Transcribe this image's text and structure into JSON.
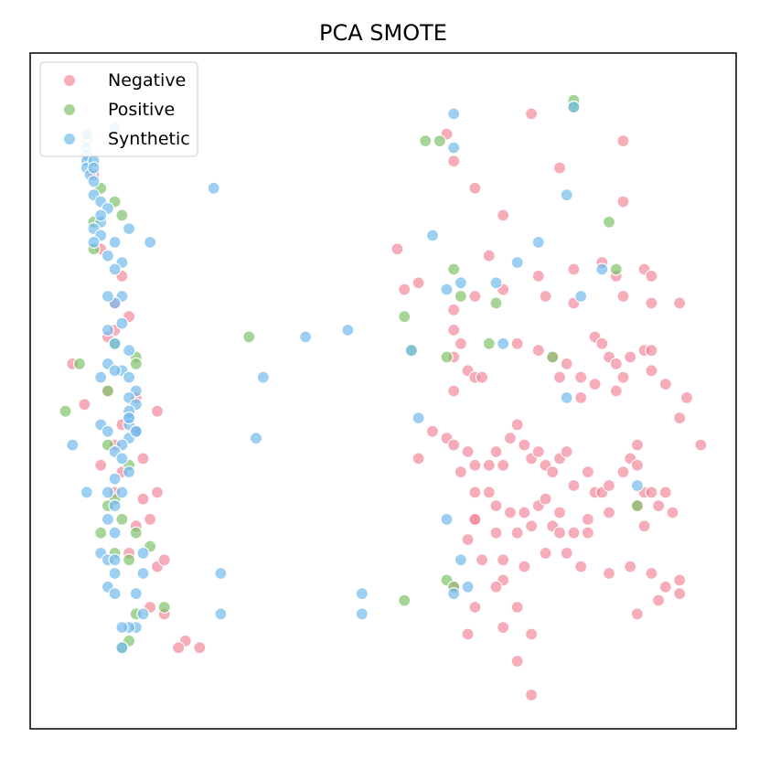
{
  "chart_data": {
    "type": "scatter",
    "title": "PCA SMOTE",
    "xlabel": "",
    "ylabel": "",
    "xlim": [
      0,
      1
    ],
    "ylim": [
      0,
      1
    ],
    "grid": false,
    "axis_ticks": false,
    "legend_position": "top-left",
    "series": [
      {
        "name": "Negative",
        "color": "#f4899c",
        "points": [
          [
            0.06,
            0.54
          ],
          [
            0.077,
            0.48
          ],
          [
            0.09,
            0.82
          ],
          [
            0.1,
            0.71
          ],
          [
            0.12,
            0.63
          ],
          [
            0.11,
            0.58
          ],
          [
            0.13,
            0.45
          ],
          [
            0.1,
            0.39
          ],
          [
            0.12,
            0.35
          ],
          [
            0.16,
            0.34
          ],
          [
            0.18,
            0.24
          ],
          [
            0.17,
            0.18
          ],
          [
            0.14,
            0.26
          ],
          [
            0.15,
            0.3
          ],
          [
            0.17,
            0.31
          ],
          [
            0.18,
            0.35
          ],
          [
            0.15,
            0.44
          ],
          [
            0.13,
            0.38
          ],
          [
            0.12,
            0.42
          ],
          [
            0.15,
            0.49
          ],
          [
            0.18,
            0.47
          ],
          [
            0.14,
            0.61
          ],
          [
            0.16,
            0.4
          ],
          [
            0.19,
            0.25
          ],
          [
            0.22,
            0.13
          ],
          [
            0.24,
            0.12
          ],
          [
            0.21,
            0.12
          ],
          [
            0.19,
            0.17
          ],
          [
            0.13,
            0.67
          ],
          [
            0.12,
            0.59
          ],
          [
            0.11,
            0.5
          ],
          [
            0.59,
            0.88
          ],
          [
            0.6,
            0.84
          ],
          [
            0.63,
            0.8
          ],
          [
            0.71,
            0.91
          ],
          [
            0.75,
            0.83
          ],
          [
            0.84,
            0.87
          ],
          [
            0.84,
            0.78
          ],
          [
            0.67,
            0.76
          ],
          [
            0.52,
            0.71
          ],
          [
            0.53,
            0.65
          ],
          [
            0.55,
            0.66
          ],
          [
            0.6,
            0.62
          ],
          [
            0.65,
            0.7
          ],
          [
            0.63,
            0.64
          ],
          [
            0.67,
            0.65
          ],
          [
            0.73,
            0.64
          ],
          [
            0.72,
            0.67
          ],
          [
            0.77,
            0.63
          ],
          [
            0.81,
            0.69
          ],
          [
            0.83,
            0.67
          ],
          [
            0.87,
            0.68
          ],
          [
            0.88,
            0.67
          ],
          [
            0.88,
            0.63
          ],
          [
            0.92,
            0.63
          ],
          [
            0.84,
            0.64
          ],
          [
            0.77,
            0.68
          ],
          [
            0.6,
            0.59
          ],
          [
            0.61,
            0.57
          ],
          [
            0.6,
            0.55
          ],
          [
            0.62,
            0.53
          ],
          [
            0.6,
            0.5
          ],
          [
            0.63,
            0.52
          ],
          [
            0.64,
            0.52
          ],
          [
            0.69,
            0.57
          ],
          [
            0.72,
            0.56
          ],
          [
            0.74,
            0.55
          ],
          [
            0.76,
            0.54
          ],
          [
            0.75,
            0.52
          ],
          [
            0.78,
            0.52
          ],
          [
            0.8,
            0.58
          ],
          [
            0.81,
            0.57
          ],
          [
            0.82,
            0.55
          ],
          [
            0.83,
            0.54
          ],
          [
            0.84,
            0.52
          ],
          [
            0.85,
            0.55
          ],
          [
            0.87,
            0.56
          ],
          [
            0.88,
            0.53
          ],
          [
            0.9,
            0.51
          ],
          [
            0.93,
            0.49
          ],
          [
            0.92,
            0.46
          ],
          [
            0.88,
            0.56
          ],
          [
            0.83,
            0.5
          ],
          [
            0.8,
            0.51
          ],
          [
            0.78,
            0.49
          ],
          [
            0.57,
            0.44
          ],
          [
            0.59,
            0.43
          ],
          [
            0.6,
            0.42
          ],
          [
            0.62,
            0.41
          ],
          [
            0.61,
            0.38
          ],
          [
            0.63,
            0.39
          ],
          [
            0.65,
            0.39
          ],
          [
            0.66,
            0.41
          ],
          [
            0.67,
            0.39
          ],
          [
            0.68,
            0.43
          ],
          [
            0.69,
            0.45
          ],
          [
            0.7,
            0.42
          ],
          [
            0.71,
            0.4
          ],
          [
            0.72,
            0.41
          ],
          [
            0.73,
            0.39
          ],
          [
            0.74,
            0.38
          ],
          [
            0.75,
            0.4
          ],
          [
            0.76,
            0.41
          ],
          [
            0.77,
            0.36
          ],
          [
            0.79,
            0.38
          ],
          [
            0.8,
            0.35
          ],
          [
            0.81,
            0.35
          ],
          [
            0.82,
            0.36
          ],
          [
            0.84,
            0.38
          ],
          [
            0.85,
            0.4
          ],
          [
            0.86,
            0.42
          ],
          [
            0.86,
            0.39
          ],
          [
            0.87,
            0.35
          ],
          [
            0.88,
            0.35
          ],
          [
            0.9,
            0.35
          ],
          [
            0.91,
            0.32
          ],
          [
            0.95,
            0.42
          ],
          [
            0.55,
            0.4
          ],
          [
            0.63,
            0.35
          ],
          [
            0.65,
            0.35
          ],
          [
            0.66,
            0.33
          ],
          [
            0.68,
            0.32
          ],
          [
            0.7,
            0.32
          ],
          [
            0.72,
            0.33
          ],
          [
            0.74,
            0.3
          ],
          [
            0.75,
            0.29
          ],
          [
            0.77,
            0.29
          ],
          [
            0.79,
            0.29
          ],
          [
            0.69,
            0.29
          ],
          [
            0.66,
            0.29
          ],
          [
            0.63,
            0.31
          ],
          [
            0.62,
            0.28
          ],
          [
            0.64,
            0.25
          ],
          [
            0.67,
            0.22
          ],
          [
            0.69,
            0.18
          ],
          [
            0.71,
            0.14
          ],
          [
            0.69,
            0.1
          ],
          [
            0.71,
            0.05
          ],
          [
            0.63,
            0.18
          ],
          [
            0.66,
            0.21
          ],
          [
            0.67,
            0.25
          ],
          [
            0.73,
            0.26
          ],
          [
            0.76,
            0.26
          ],
          [
            0.78,
            0.24
          ],
          [
            0.82,
            0.23
          ],
          [
            0.85,
            0.24
          ],
          [
            0.88,
            0.23
          ],
          [
            0.9,
            0.21
          ],
          [
            0.92,
            0.22
          ],
          [
            0.92,
            0.2
          ],
          [
            0.89,
            0.19
          ],
          [
            0.86,
            0.17
          ],
          [
            0.6,
            0.21
          ],
          [
            0.62,
            0.14
          ],
          [
            0.67,
            0.15
          ],
          [
            0.7,
            0.24
          ],
          [
            0.71,
            0.3
          ],
          [
            0.75,
            0.32
          ],
          [
            0.73,
            0.34
          ],
          [
            0.79,
            0.31
          ],
          [
            0.82,
            0.32
          ],
          [
            0.86,
            0.33
          ],
          [
            0.87,
            0.3
          ],
          [
            0.89,
            0.33
          ],
          [
            0.63,
            0.31
          ]
        ]
      },
      {
        "name": "Positive",
        "color": "#7fc36b",
        "points": [
          [
            0.08,
            0.87
          ],
          [
            0.09,
            0.75
          ],
          [
            0.1,
            0.8
          ],
          [
            0.12,
            0.78
          ],
          [
            0.13,
            0.76
          ],
          [
            0.09,
            0.71
          ],
          [
            0.12,
            0.57
          ],
          [
            0.11,
            0.5
          ],
          [
            0.07,
            0.54
          ],
          [
            0.05,
            0.47
          ],
          [
            0.15,
            0.55
          ],
          [
            0.15,
            0.54
          ],
          [
            0.14,
            0.39
          ],
          [
            0.12,
            0.34
          ],
          [
            0.11,
            0.33
          ],
          [
            0.13,
            0.31
          ],
          [
            0.15,
            0.29
          ],
          [
            0.14,
            0.25
          ],
          [
            0.17,
            0.27
          ],
          [
            0.15,
            0.17
          ],
          [
            0.19,
            0.18
          ],
          [
            0.14,
            0.13
          ],
          [
            0.13,
            0.12
          ],
          [
            0.12,
            0.26
          ],
          [
            0.1,
            0.29
          ],
          [
            0.11,
            0.42
          ],
          [
            0.31,
            0.58
          ],
          [
            0.56,
            0.87
          ],
          [
            0.58,
            0.87
          ],
          [
            0.77,
            0.93
          ],
          [
            0.77,
            0.92
          ],
          [
            0.82,
            0.75
          ],
          [
            0.83,
            0.68
          ],
          [
            0.6,
            0.68
          ],
          [
            0.61,
            0.64
          ],
          [
            0.66,
            0.63
          ],
          [
            0.53,
            0.61
          ],
          [
            0.54,
            0.56
          ],
          [
            0.59,
            0.55
          ],
          [
            0.65,
            0.57
          ],
          [
            0.74,
            0.55
          ],
          [
            0.86,
            0.33
          ],
          [
            0.59,
            0.22
          ],
          [
            0.6,
            0.21
          ],
          [
            0.53,
            0.19
          ]
        ]
      },
      {
        "name": "Synthetic",
        "color": "#74bbec",
        "points": [
          [
            0.08,
            0.88
          ],
          [
            0.08,
            0.86
          ],
          [
            0.08,
            0.85
          ],
          [
            0.08,
            0.84
          ],
          [
            0.08,
            0.83
          ],
          [
            0.085,
            0.82
          ],
          [
            0.09,
            0.81
          ],
          [
            0.09,
            0.79
          ],
          [
            0.1,
            0.78
          ],
          [
            0.11,
            0.77
          ],
          [
            0.1,
            0.75
          ],
          [
            0.09,
            0.74
          ],
          [
            0.1,
            0.73
          ],
          [
            0.09,
            0.72
          ],
          [
            0.12,
            0.72
          ],
          [
            0.11,
            0.7
          ],
          [
            0.13,
            0.69
          ],
          [
            0.12,
            0.68
          ],
          [
            0.13,
            0.64
          ],
          [
            0.12,
            0.63
          ],
          [
            0.13,
            0.6
          ],
          [
            0.12,
            0.57
          ],
          [
            0.14,
            0.56
          ],
          [
            0.13,
            0.53
          ],
          [
            0.14,
            0.52
          ],
          [
            0.15,
            0.5
          ],
          [
            0.14,
            0.49
          ],
          [
            0.15,
            0.48
          ],
          [
            0.14,
            0.47
          ],
          [
            0.14,
            0.46
          ],
          [
            0.14,
            0.45
          ],
          [
            0.15,
            0.44
          ],
          [
            0.14,
            0.43
          ],
          [
            0.13,
            0.42
          ],
          [
            0.12,
            0.41
          ],
          [
            0.13,
            0.4
          ],
          [
            0.14,
            0.38
          ],
          [
            0.12,
            0.37
          ],
          [
            0.13,
            0.35
          ],
          [
            0.11,
            0.35
          ],
          [
            0.12,
            0.33
          ],
          [
            0.11,
            0.31
          ],
          [
            0.12,
            0.29
          ],
          [
            0.1,
            0.26
          ],
          [
            0.11,
            0.25
          ],
          [
            0.12,
            0.25
          ],
          [
            0.12,
            0.23
          ],
          [
            0.11,
            0.21
          ],
          [
            0.12,
            0.2
          ],
          [
            0.15,
            0.2
          ],
          [
            0.16,
            0.17
          ],
          [
            0.15,
            0.15
          ],
          [
            0.14,
            0.15
          ],
          [
            0.13,
            0.15
          ],
          [
            0.13,
            0.12
          ],
          [
            0.16,
            0.26
          ],
          [
            0.16,
            0.23
          ],
          [
            0.11,
            0.54
          ],
          [
            0.1,
            0.45
          ],
          [
            0.06,
            0.42
          ],
          [
            0.08,
            0.35
          ],
          [
            0.11,
            0.44
          ],
          [
            0.12,
            0.53
          ],
          [
            0.11,
            0.64
          ],
          [
            0.14,
            0.74
          ],
          [
            0.12,
            0.89
          ],
          [
            0.11,
            0.59
          ],
          [
            0.09,
            0.84
          ],
          [
            0.09,
            0.83
          ],
          [
            0.1,
            0.76
          ],
          [
            0.1,
            0.52
          ],
          [
            0.14,
            0.46
          ],
          [
            0.15,
            0.44
          ],
          [
            0.26,
            0.8
          ],
          [
            0.33,
            0.52
          ],
          [
            0.32,
            0.43
          ],
          [
            0.27,
            0.23
          ],
          [
            0.27,
            0.17
          ],
          [
            0.39,
            0.58
          ],
          [
            0.45,
            0.59
          ],
          [
            0.54,
            0.56
          ],
          [
            0.47,
            0.2
          ],
          [
            0.47,
            0.17
          ],
          [
            0.55,
            0.46
          ],
          [
            0.59,
            0.65
          ],
          [
            0.61,
            0.66
          ],
          [
            0.66,
            0.66
          ],
          [
            0.69,
            0.69
          ],
          [
            0.72,
            0.72
          ],
          [
            0.76,
            0.79
          ],
          [
            0.78,
            0.64
          ],
          [
            0.76,
            0.49
          ],
          [
            0.81,
            0.68
          ],
          [
            0.67,
            0.57
          ],
          [
            0.6,
            0.86
          ],
          [
            0.6,
            0.91
          ],
          [
            0.57,
            0.73
          ],
          [
            0.59,
            0.31
          ],
          [
            0.6,
            0.2
          ],
          [
            0.62,
            0.21
          ],
          [
            0.61,
            0.25
          ],
          [
            0.86,
            0.36
          ],
          [
            0.77,
            0.92
          ],
          [
            0.17,
            0.72
          ]
        ]
      }
    ]
  }
}
